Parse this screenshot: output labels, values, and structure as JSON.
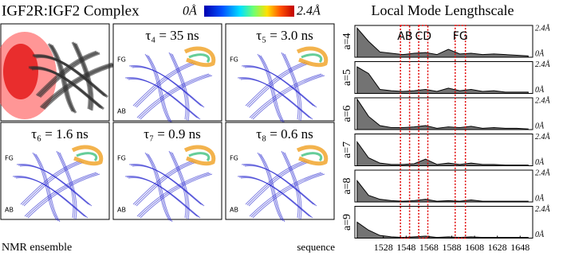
{
  "figure": {
    "title": "IGF2R:IGF2 Complex",
    "colorbar": {
      "min_label": "0Å",
      "max_label": "2.4Å"
    },
    "ensemble_caption": "NMR ensemble",
    "panels": [
      {
        "label": "τ₄ = 35 ns",
        "tags": [
          "FG",
          "AB"
        ]
      },
      {
        "label": "τ₅ = 3.0 ns",
        "tags": [
          "FG"
        ]
      },
      {
        "label": "τ₆ = 1.6 ns",
        "tags": [
          "FG",
          "AB"
        ]
      },
      {
        "label": "τ₇ = 0.9 ns",
        "tags": [
          "FG",
          "AB"
        ]
      },
      {
        "label": "τ₈ = 0.6 ns",
        "tags": [
          "FG",
          "AB"
        ]
      }
    ]
  },
  "chart_data": {
    "type": "area",
    "title": "Local Mode Lengthscale",
    "xlabel": "sequence",
    "x": [
      1505,
      1515,
      1525,
      1535,
      1545,
      1555,
      1565,
      1575,
      1585,
      1595,
      1605,
      1615,
      1625,
      1635,
      1645,
      1655
    ],
    "xlim": [
      1503,
      1659
    ],
    "xticks": [
      1528,
      1548,
      1568,
      1588,
      1608,
      1628,
      1648
    ],
    "ylim": [
      0,
      2.4
    ],
    "yticks": [
      {
        "value": 0,
        "label": "0Å"
      },
      {
        "value": 2.4,
        "label": "2.4Å"
      }
    ],
    "series": [
      {
        "name": "a=4",
        "color": "#000000",
        "values": [
          2.2,
          1.2,
          0.4,
          0.3,
          0.2,
          0.3,
          0.35,
          0.2,
          0.6,
          0.25,
          0.3,
          0.2,
          0.25,
          0.2,
          0.15,
          0.1
        ]
      },
      {
        "name": "a=5",
        "color": "#000000",
        "values": [
          2.0,
          1.5,
          0.3,
          0.2,
          0.15,
          0.2,
          0.3,
          0.15,
          0.4,
          0.2,
          0.3,
          0.15,
          0.2,
          0.1,
          0.1,
          0.1
        ]
      },
      {
        "name": "a=6",
        "color": "#000000",
        "values": [
          2.3,
          1.0,
          0.3,
          0.15,
          0.15,
          0.2,
          0.3,
          0.1,
          0.2,
          0.15,
          0.25,
          0.1,
          0.15,
          0.1,
          0.1,
          0.05
        ]
      },
      {
        "name": "a=7",
        "color": "#000000",
        "values": [
          1.8,
          0.6,
          0.2,
          0.1,
          0.1,
          0.15,
          0.5,
          0.1,
          0.2,
          0.1,
          0.2,
          0.1,
          0.1,
          0.05,
          0.05,
          0.05
        ]
      },
      {
        "name": "a=8",
        "color": "#000000",
        "values": [
          1.6,
          0.5,
          0.2,
          0.1,
          0.05,
          0.1,
          0.2,
          0.05,
          0.1,
          0.05,
          0.15,
          0.05,
          0.05,
          0.05,
          0.05,
          0.05
        ]
      },
      {
        "name": "a=9",
        "color": "#000000",
        "values": [
          1.2,
          0.6,
          0.2,
          0.1,
          0.05,
          0.1,
          0.15,
          0.05,
          0.1,
          0.05,
          0.1,
          0.05,
          0.05,
          0.05,
          0.05,
          0.05
        ]
      }
    ],
    "regions": [
      {
        "label": "AB",
        "start": 1543,
        "end": 1551,
        "color": "#e00000"
      },
      {
        "label": "CD",
        "start": 1559,
        "end": 1567,
        "color": "#e00000"
      },
      {
        "label": "FG",
        "start": 1591,
        "end": 1600,
        "color": "#e00000"
      }
    ]
  }
}
